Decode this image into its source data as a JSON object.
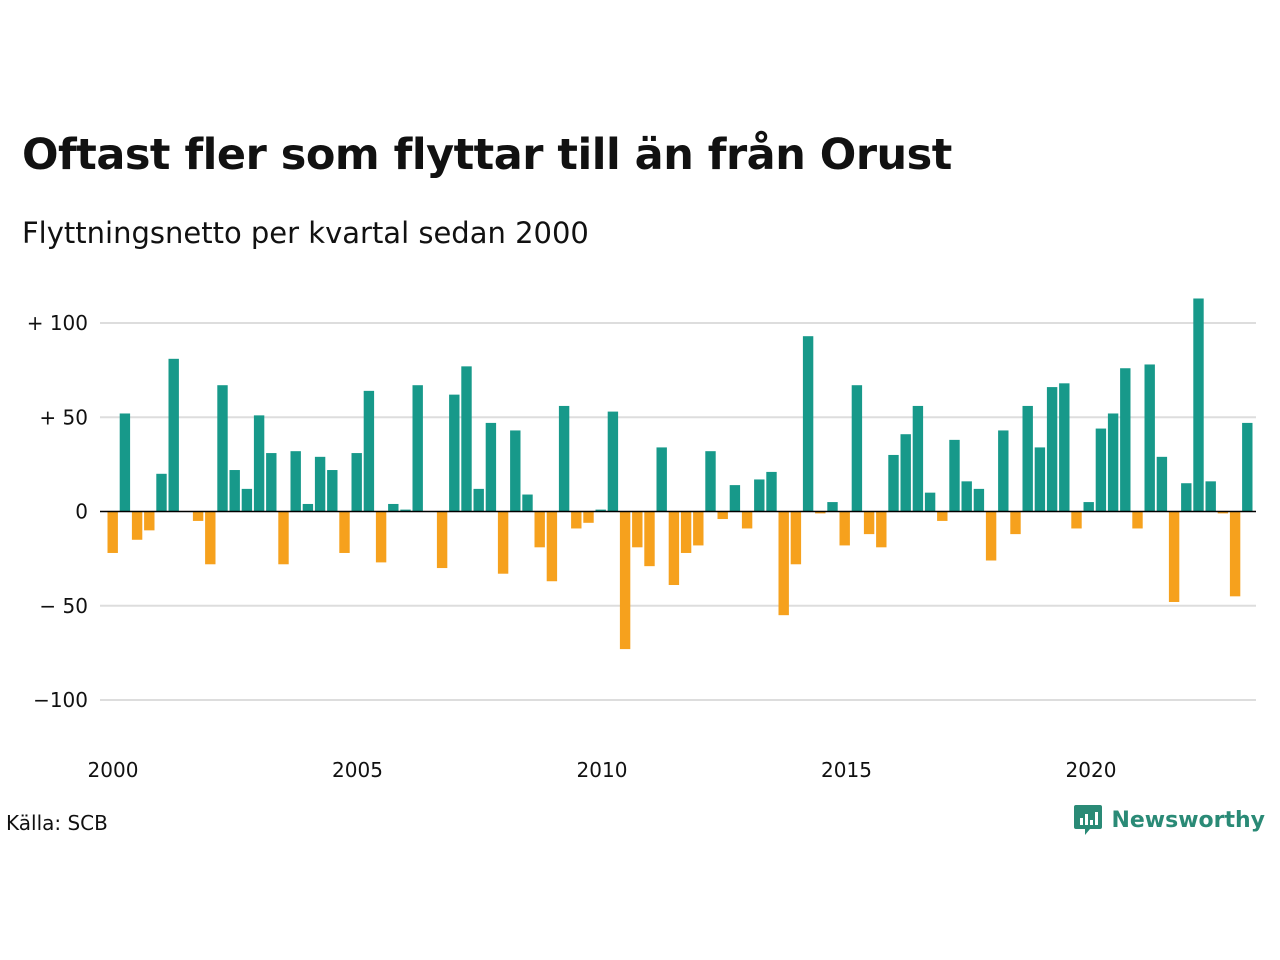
{
  "title": "Oftast fler som flyttar till än från Orust",
  "subtitle": "Flyttningsnetto per kvartal sedan 2000",
  "source": "Källa: SCB",
  "brand": {
    "name": "Newsworthy",
    "icon": "newsworthy-logo-icon"
  },
  "colors": {
    "positive": "#17998a",
    "negative": "#f6a11d",
    "grid": "#dddddd",
    "zero_line": "#000000",
    "brand": "#2a8a76"
  },
  "chart_data": {
    "type": "bar",
    "title": "Oftast fler som flyttar till än från Orust",
    "subtitle": "Flyttningsnetto per kvartal sedan 2000",
    "xlabel": "",
    "ylabel": "",
    "x_start": 2000,
    "periods_per_year": 4,
    "y_ticks": [
      100,
      50,
      0,
      -50,
      -100
    ],
    "y_tick_labels": [
      "+ 100",
      "+  50",
      "0",
      "− 50",
      "−100"
    ],
    "x_ticks": [
      2000,
      2005,
      2010,
      2015,
      2020
    ],
    "x_tick_labels": [
      "2000",
      "2005",
      "2010",
      "2015",
      "2020"
    ],
    "ylim": [
      -120,
      120
    ],
    "grid": true,
    "legend": "none",
    "values": [
      -22,
      52,
      -15,
      -10,
      20,
      81,
      0,
      -5,
      -28,
      67,
      22,
      12,
      51,
      31,
      -28,
      32,
      4,
      29,
      22,
      -22,
      31,
      64,
      -27,
      4,
      1,
      67,
      0,
      -30,
      62,
      77,
      12,
      47,
      -33,
      43,
      9,
      -19,
      -37,
      56,
      -9,
      -6,
      1,
      53,
      -73,
      -19,
      -29,
      34,
      -39,
      -22,
      -18,
      32,
      -4,
      14,
      -9,
      17,
      21,
      -55,
      -28,
      93,
      -1,
      5,
      -18,
      67,
      -12,
      -19,
      30,
      41,
      56,
      10,
      -5,
      38,
      16,
      12,
      -26,
      43,
      -12,
      56,
      34,
      66,
      68,
      -9,
      5,
      44,
      52,
      76,
      -9,
      78,
      29,
      -48,
      15,
      113,
      16,
      -1,
      -45,
      47
    ]
  }
}
